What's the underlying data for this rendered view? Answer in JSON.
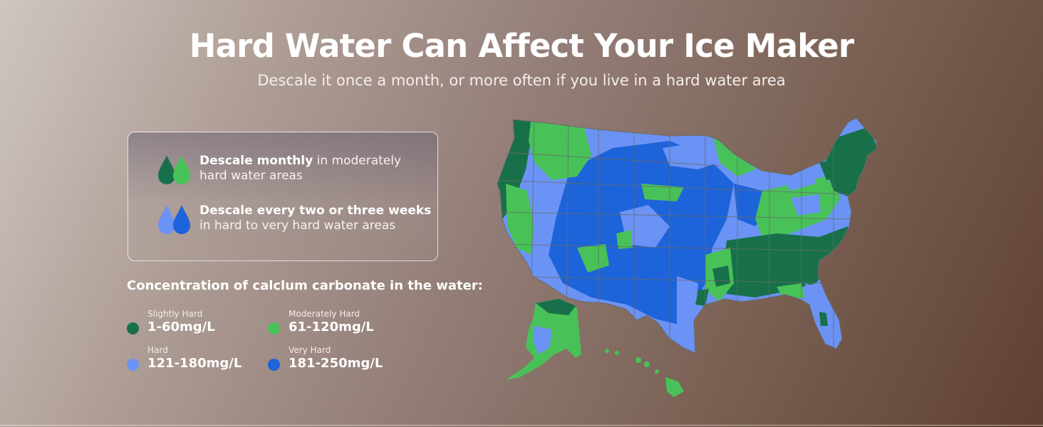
{
  "header": {
    "title": "Hard Water Can Affect Your Ice Maker",
    "subtitle": "Descale it once a month, or more often if you live in a hard water area"
  },
  "tips": [
    {
      "bold": "Descale monthly",
      "rest_line1": " in moderately",
      "rest_line2": "hard water areas",
      "icon": "green-water-drops-icon"
    },
    {
      "bold": "Descale every two or three weeks",
      "rest_line1": "",
      "rest_line2": "in hard to very hard water areas",
      "icon": "blue-water-drops-icon"
    }
  ],
  "legend": {
    "title": "Concentration of calclum carbonate in the water:",
    "items": [
      {
        "name": "Slightly Hard",
        "value": "1-60mg/L",
        "color": "#17704a"
      },
      {
        "name": "Moderately Hard",
        "value": "61-120mg/L",
        "color": "#48c258"
      },
      {
        "name": "Hard",
        "value": "121-180mg/L",
        "color": "#6b93f5"
      },
      {
        "name": "Very Hard",
        "value": "181-250mg/L",
        "color": "#1d63d9"
      }
    ]
  },
  "colors": {
    "slightly_hard": "#17704a",
    "moderately_hard": "#48c258",
    "hard": "#6b93f5",
    "very_hard": "#1d63d9",
    "state_border": "#6a6a6a"
  }
}
